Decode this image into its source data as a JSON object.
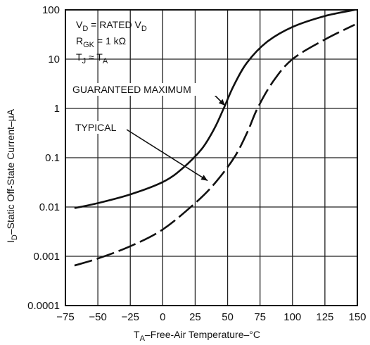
{
  "chart_data": {
    "type": "line",
    "xlabel_main": "T",
    "xlabel_sub": "A",
    "xlabel_rest": "–Free-Air Temperature–°C",
    "ylabel_main": "I",
    "ylabel_sub": "D",
    "ylabel_rest": "–Static Off-State Current–μA",
    "x_ticks": [
      "−75",
      "−50",
      "−25",
      "0",
      "25",
      "50",
      "75",
      "100",
      "125",
      "150"
    ],
    "x_tick_values": [
      -75,
      -50,
      -25,
      0,
      25,
      50,
      75,
      100,
      125,
      150
    ],
    "y_ticks": [
      "100",
      "10",
      "1",
      "0.1",
      "0.01",
      "0.001",
      "0.0001"
    ],
    "y_tick_values": [
      100,
      10,
      1,
      0.1,
      0.01,
      0.001,
      0.0001
    ],
    "xlim": [
      -75,
      150
    ],
    "ylim": [
      0.0001,
      100
    ],
    "y_scale": "log",
    "grid": true,
    "conditions": [
      {
        "main": "V",
        "sub": "D",
        "rest": " = RATED V",
        "sub2": "D"
      },
      {
        "main": "R",
        "sub": "GK",
        "rest": " = 1 kΩ",
        "sub2": ""
      },
      {
        "main": "T",
        "sub": "J",
        "rest": " ≈ T",
        "sub2": "A"
      }
    ],
    "series": [
      {
        "name": "GUARANTEED MAXIMUM",
        "style": "solid",
        "x": [
          -68,
          -50,
          -25,
          0,
          15,
          30,
          40,
          47,
          55,
          65,
          80,
          100,
          125,
          148
        ],
        "y": [
          0.0095,
          0.012,
          0.018,
          0.032,
          0.06,
          0.15,
          0.4,
          1.0,
          3.0,
          8.5,
          22,
          45,
          75,
          100
        ]
      },
      {
        "name": "TYPICAL",
        "style": "dashed",
        "x": [
          -68,
          -50,
          -25,
          0,
          25,
          40,
          55,
          65,
          73,
          85,
          100,
          125,
          148
        ],
        "y": [
          0.00065,
          0.0009,
          0.0016,
          0.0035,
          0.012,
          0.03,
          0.1,
          0.32,
          1.0,
          3.5,
          10,
          25,
          50
        ]
      }
    ],
    "annotations": [
      "GUARANTEED MAXIMUM",
      "TYPICAL"
    ]
  }
}
